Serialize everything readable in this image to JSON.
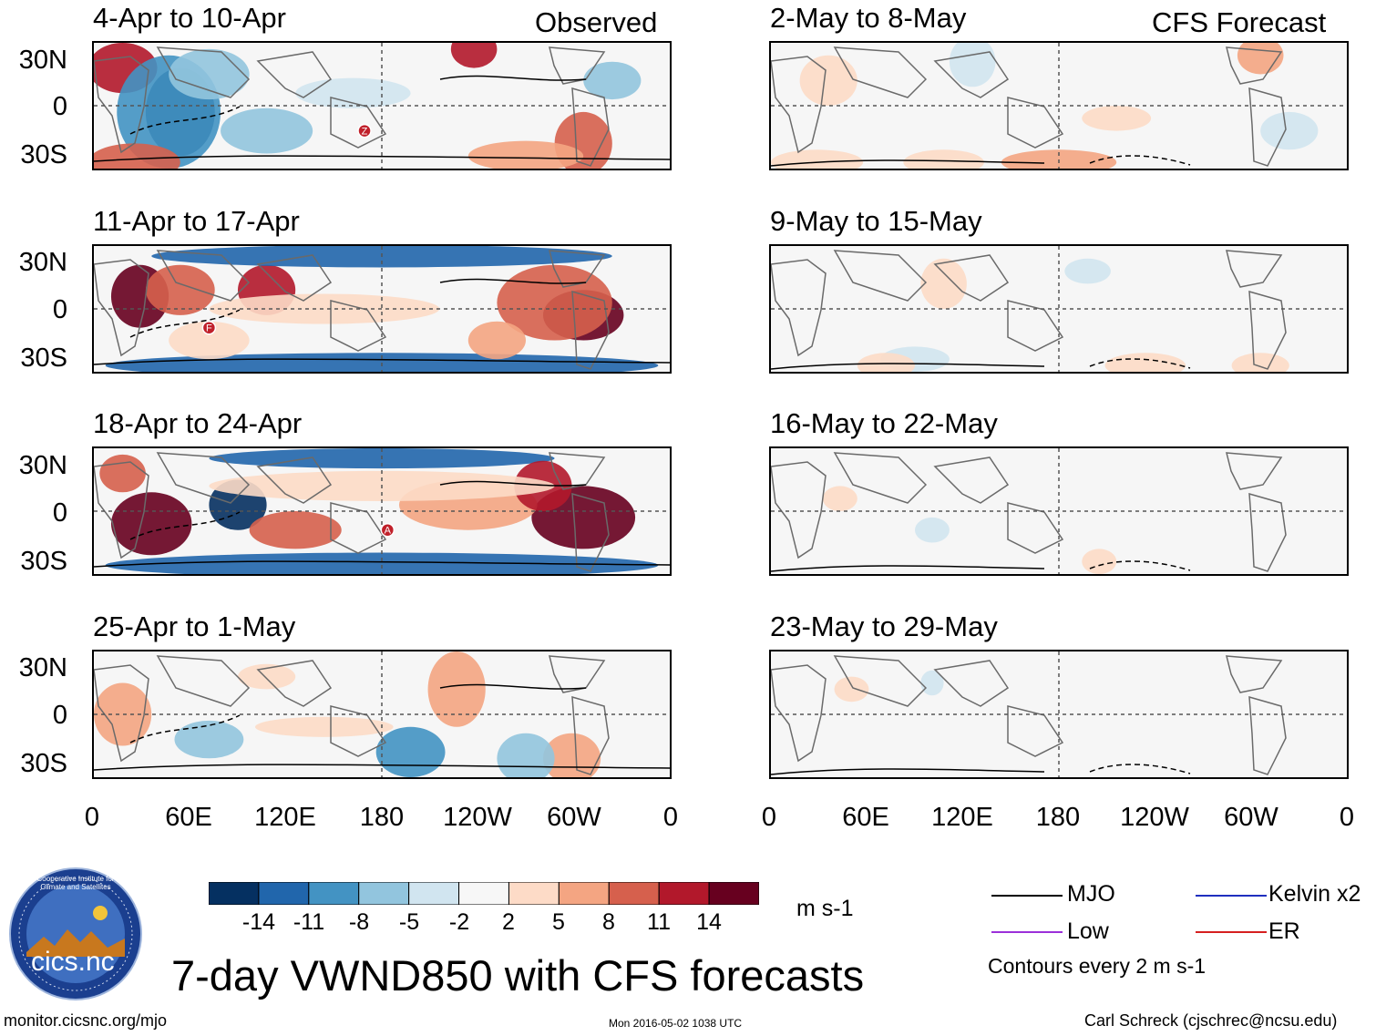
{
  "left_header": "Observed",
  "right_header": "CFS Forecast",
  "lat_labels": [
    "30N",
    "0",
    "30S"
  ],
  "lon_labels": [
    "0",
    "60E",
    "120E",
    "180",
    "120W",
    "60W",
    "0"
  ],
  "observed_panels": [
    {
      "title": "4-Apr to 10-Apr",
      "marker": "Z"
    },
    {
      "title": "11-Apr to 17-Apr",
      "marker": "F"
    },
    {
      "title": "18-Apr to 24-Apr",
      "marker": "A"
    },
    {
      "title": "25-Apr to 1-May",
      "marker": ""
    }
  ],
  "forecast_panels": [
    {
      "title": "2-May to 8-May"
    },
    {
      "title": "9-May to 15-May"
    },
    {
      "title": "16-May to 22-May"
    },
    {
      "title": "23-May to 29-May"
    }
  ],
  "colorbar": {
    "unit": "m s-1",
    "ticks": [
      "-14",
      "-11",
      "-8",
      "-5",
      "-2",
      "2",
      "5",
      "8",
      "11",
      "14"
    ],
    "colors": [
      "#053061",
      "#2166ac",
      "#4393c3",
      "#92c5de",
      "#d1e5f0",
      "#f7f7f7",
      "#fddbc7",
      "#f4a582",
      "#d6604d",
      "#b2182b",
      "#67001f"
    ]
  },
  "legend": {
    "mjo": {
      "label": "MJO",
      "color": "#000000"
    },
    "kelvin": {
      "label": "Kelvin x2",
      "color": "#1f2fbf"
    },
    "low": {
      "label": "Low",
      "color": "#9b30d9"
    },
    "er": {
      "label": "ER",
      "color": "#d62020"
    },
    "note": "Contours every 2 m s-1"
  },
  "logo": {
    "text": "cics.nc",
    "ring_text": "Cooperative Institute for Climate and Satellites"
  },
  "main_title": "7-day VWND850 with CFS forecasts",
  "footer": {
    "url": "monitor.cicsnc.org/mjo",
    "timestamp": "Mon 2016-05-02 1038 UTC",
    "author": "Carl Schreck (cjschrec@ncsu.edu)"
  },
  "chart_data": {
    "type": "heatmap",
    "variable": "850-hPa meridional wind anomaly (VWND850), 7-day mean",
    "units": "m s-1",
    "x_range": [
      "0",
      "0"
    ],
    "x_ticks": [
      "0",
      "60E",
      "120E",
      "180",
      "120W",
      "60W",
      "0"
    ],
    "y_range": [
      "40S",
      "40N"
    ],
    "y_ticks": [
      "30N",
      "0",
      "30S"
    ],
    "contour_interval": "2 m s-1",
    "color_levels": [
      -14,
      -11,
      -8,
      -5,
      -2,
      2,
      5,
      8,
      11,
      14
    ],
    "panels": [
      "4-Apr to 10-Apr",
      "11-Apr to 17-Apr",
      "18-Apr to 24-Apr",
      "25-Apr to 1-May",
      "2-May to 8-May",
      "9-May to 15-May",
      "16-May to 22-May",
      "23-May to 29-May"
    ]
  }
}
